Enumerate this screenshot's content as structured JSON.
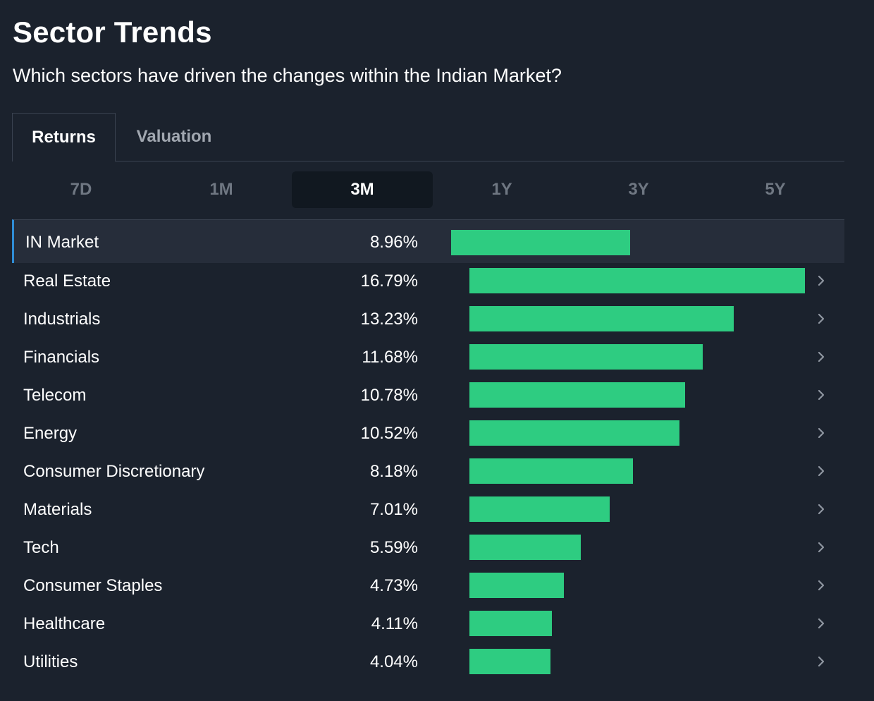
{
  "header": {
    "title": "Sector Trends",
    "subtitle": "Which sectors have driven the changes within the Indian Market?"
  },
  "main_tabs": [
    {
      "label": "Returns",
      "active": true
    },
    {
      "label": "Valuation",
      "active": false
    }
  ],
  "periods": [
    {
      "label": "7D",
      "active": false
    },
    {
      "label": "1M",
      "active": false
    },
    {
      "label": "3M",
      "active": true
    },
    {
      "label": "1Y",
      "active": false
    },
    {
      "label": "3Y",
      "active": false
    },
    {
      "label": "5Y",
      "active": false
    }
  ],
  "colors": {
    "background": "#1b222d",
    "bar": "#2ecc81",
    "highlight_row": "#262d3a",
    "highlight_border": "#2f8dd6"
  },
  "chart_data": {
    "type": "bar",
    "orientation": "horizontal",
    "unit": "%",
    "xlim": [
      0,
      16.79
    ],
    "benchmark": {
      "name": "IN Market",
      "value": 8.96,
      "label": "8.96%"
    },
    "categories": [
      "Real Estate",
      "Industrials",
      "Financials",
      "Telecom",
      "Energy",
      "Consumer Discretionary",
      "Materials",
      "Tech",
      "Consumer Staples",
      "Healthcare",
      "Utilities"
    ],
    "values": [
      16.79,
      13.23,
      11.68,
      10.78,
      10.52,
      8.18,
      7.01,
      5.59,
      4.73,
      4.11,
      4.04
    ],
    "labels": [
      "16.79%",
      "13.23%",
      "11.68%",
      "10.78%",
      "10.52%",
      "8.18%",
      "7.01%",
      "5.59%",
      "4.73%",
      "4.11%",
      "4.04%"
    ]
  }
}
